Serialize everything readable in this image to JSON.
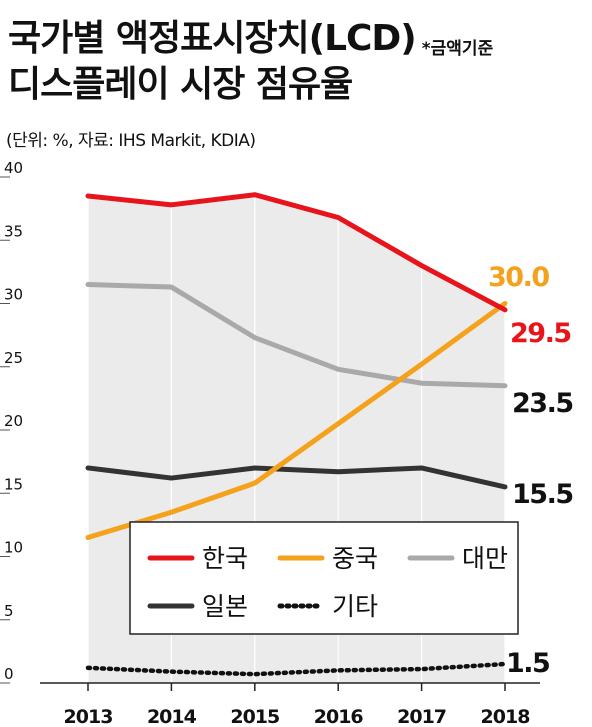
{
  "title": {
    "line1": "국가별 액정표시장치(LCD)",
    "note": "*금액기준",
    "line2": "디스플레이 시장 점유율"
  },
  "subtitle": "(단위: %, 자료: IHS Markit, KDIA)",
  "colors": {
    "korea": "#e8141b",
    "china": "#f4a21c",
    "taiwan": "#a9a9a9",
    "japan": "#333333",
    "others": "#111111",
    "area": "#ebebeb"
  },
  "chart_data": {
    "type": "line",
    "x": [
      "2013",
      "2014",
      "2015",
      "2016",
      "2017",
      "2018"
    ],
    "ylim": [
      0,
      40
    ],
    "yticks": [
      "0",
      "5",
      "10",
      "15",
      "20",
      "25",
      "30",
      "35",
      "40"
    ],
    "grid": false,
    "legend_position": "center",
    "series": [
      {
        "key": "korea",
        "name": "한국",
        "values": [
          38.5,
          37.8,
          38.6,
          36.8,
          33.0,
          29.5
        ],
        "end_label": "29.5",
        "style": "solid"
      },
      {
        "key": "china",
        "name": "중국",
        "values": [
          11.5,
          13.5,
          15.8,
          20.5,
          25.2,
          30.0
        ],
        "end_label": "30.0",
        "style": "solid"
      },
      {
        "key": "taiwan",
        "name": "대만",
        "values": [
          31.5,
          31.3,
          27.3,
          24.8,
          23.7,
          23.5
        ],
        "end_label": "23.5",
        "style": "solid"
      },
      {
        "key": "japan",
        "name": "일본",
        "values": [
          17.0,
          16.2,
          17.0,
          16.7,
          17.0,
          15.5
        ],
        "end_label": "15.5",
        "style": "solid"
      },
      {
        "key": "others",
        "name": "기타",
        "values": [
          1.2,
          0.9,
          0.7,
          1.0,
          1.1,
          1.5
        ],
        "end_label": "1.5",
        "style": "dotted"
      }
    ]
  }
}
